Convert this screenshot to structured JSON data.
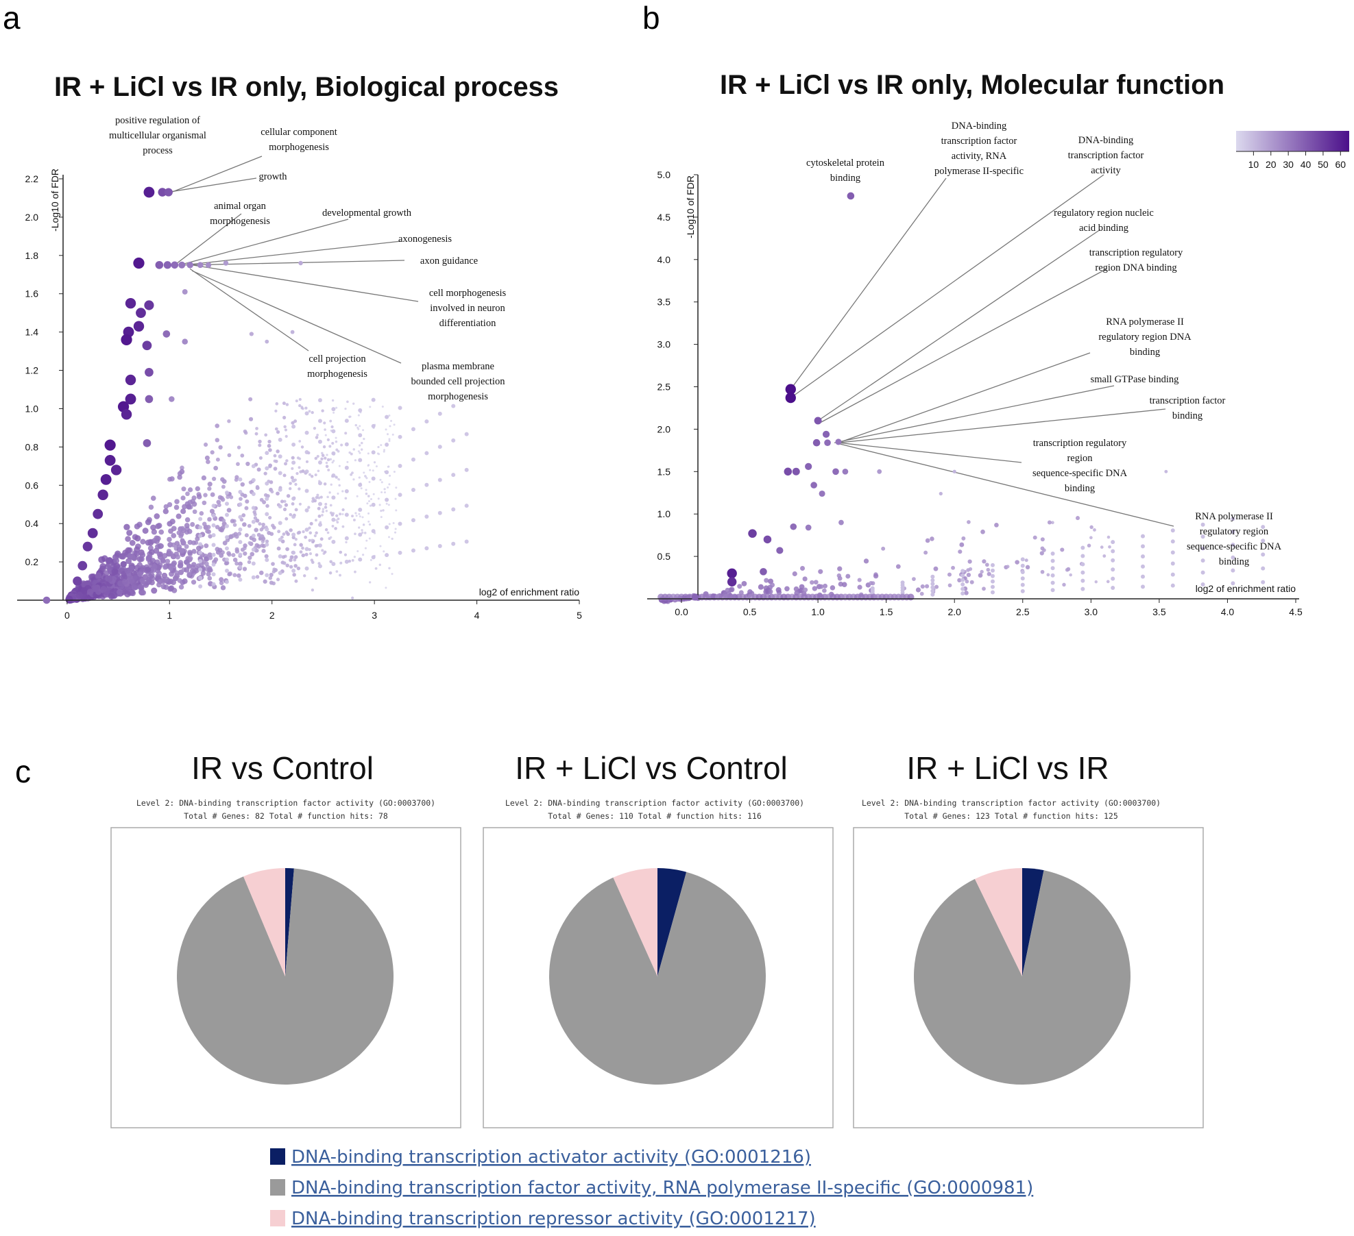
{
  "panel_labels": {
    "a": "a",
    "b": "b",
    "c": "c"
  },
  "colors": {
    "scale_low": "#dcd9ee",
    "scale_high": "#4b0f8a",
    "leader": "#777777",
    "activator": "#0b1f64",
    "rna_pol": "#9a9a9a",
    "repressor": "#f6cfd2",
    "link": "#3a5f9c"
  },
  "chart_data": [
    {
      "id": "a",
      "type": "scatter",
      "title": "IR + LiCl vs IR only, Biological process",
      "xlabel": "log2 of enrichment ratio",
      "ylabel": "-Log10 of FDR",
      "xlim": [
        -0.3,
        5
      ],
      "ylim": [
        -0.02,
        2.3
      ],
      "xticks": [
        "0",
        "1",
        "2",
        "3",
        "4",
        "5"
      ],
      "xtick_values": [
        0,
        1,
        2,
        3,
        4,
        5
      ],
      "yticks": [
        "0.2",
        "0.4",
        "0.6",
        "0.8",
        "1.0",
        "1.2",
        "1.4",
        "1.6",
        "1.8",
        "2.0",
        "2.2"
      ],
      "ytick_values": [
        0.2,
        0.4,
        0.6,
        0.8,
        1.0,
        1.2,
        1.4,
        1.6,
        1.8,
        2.0,
        2.2
      ],
      "annotations": [
        {
          "lines": [
            "positive regulation of",
            "multicellular organismal",
            "process"
          ],
          "point": [
            0.8,
            2.13
          ]
        },
        {
          "lines": [
            "cellular component",
            "morphogenesis"
          ],
          "point": [
            1.02,
            2.13
          ]
        },
        {
          "lines": [
            "growth"
          ],
          "point": [
            0.98,
            2.13
          ]
        },
        {
          "lines": [
            "animal organ",
            "morphogenesis"
          ],
          "point": [
            1.05,
            1.75
          ]
        },
        {
          "lines": [
            "developmental growth"
          ],
          "point": [
            1.1,
            1.75
          ]
        },
        {
          "lines": [
            "axonogenesis"
          ],
          "point": [
            1.15,
            1.75
          ]
        },
        {
          "lines": [
            "axon guidance"
          ],
          "point": [
            1.2,
            1.75
          ]
        },
        {
          "lines": [
            "cell morphogenesis",
            "involved in neuron",
            "differentiation"
          ],
          "point": [
            1.22,
            1.75
          ]
        },
        {
          "lines": [
            "cell projection",
            "morphogenesis"
          ],
          "point": [
            1.2,
            1.73
          ]
        },
        {
          "lines": [
            "plasma membrane",
            "bounded cell projection",
            "morphogenesis"
          ],
          "point": [
            1.22,
            1.72
          ]
        }
      ],
      "points": [
        {
          "x": 0.8,
          "y": 2.13,
          "v": 60
        },
        {
          "x": 0.93,
          "y": 2.13,
          "v": 45
        },
        {
          "x": 0.99,
          "y": 2.13,
          "v": 42
        },
        {
          "x": 0.7,
          "y": 1.76,
          "v": 62
        },
        {
          "x": 0.9,
          "y": 1.75,
          "v": 40
        },
        {
          "x": 0.98,
          "y": 1.75,
          "v": 38
        },
        {
          "x": 1.05,
          "y": 1.75,
          "v": 35
        },
        {
          "x": 1.12,
          "y": 1.75,
          "v": 32
        },
        {
          "x": 1.2,
          "y": 1.75,
          "v": 30
        },
        {
          "x": 1.3,
          "y": 1.75,
          "v": 26
        },
        {
          "x": 1.38,
          "y": 1.75,
          "v": 24
        },
        {
          "x": 1.55,
          "y": 1.76,
          "v": 20
        },
        {
          "x": 2.28,
          "y": 1.76,
          "v": 15
        },
        {
          "x": 1.15,
          "y": 1.61,
          "v": 22
        },
        {
          "x": 0.62,
          "y": 1.55,
          "v": 58
        },
        {
          "x": 0.8,
          "y": 1.54,
          "v": 52
        },
        {
          "x": 0.72,
          "y": 1.5,
          "v": 55
        },
        {
          "x": 0.6,
          "y": 1.4,
          "v": 60
        },
        {
          "x": 0.7,
          "y": 1.43,
          "v": 58
        },
        {
          "x": 0.58,
          "y": 1.36,
          "v": 62
        },
        {
          "x": 0.78,
          "y": 1.33,
          "v": 50
        },
        {
          "x": 0.97,
          "y": 1.39,
          "v": 35
        },
        {
          "x": 1.15,
          "y": 1.35,
          "v": 25
        },
        {
          "x": 1.8,
          "y": 1.39,
          "v": 14
        },
        {
          "x": 1.95,
          "y": 1.35,
          "v": 12
        },
        {
          "x": 2.2,
          "y": 1.4,
          "v": 12
        },
        {
          "x": 0.62,
          "y": 1.15,
          "v": 58
        },
        {
          "x": 0.8,
          "y": 1.19,
          "v": 45
        },
        {
          "x": 0.55,
          "y": 1.01,
          "v": 62
        },
        {
          "x": 0.62,
          "y": 1.05,
          "v": 60
        },
        {
          "x": 0.58,
          "y": 0.97,
          "v": 58
        },
        {
          "x": 0.8,
          "y": 1.05,
          "v": 40
        },
        {
          "x": 1.02,
          "y": 1.05,
          "v": 25
        },
        {
          "x": 0.42,
          "y": 0.81,
          "v": 62
        },
        {
          "x": 0.42,
          "y": 0.73,
          "v": 60
        },
        {
          "x": 0.48,
          "y": 0.68,
          "v": 58
        },
        {
          "x": 0.78,
          "y": 0.82,
          "v": 40
        },
        {
          "x": 0.38,
          "y": 0.63,
          "v": 60
        },
        {
          "x": 0.35,
          "y": 0.55,
          "v": 58
        },
        {
          "x": 0.3,
          "y": 0.45,
          "v": 55
        },
        {
          "x": 0.25,
          "y": 0.35,
          "v": 55
        },
        {
          "x": 0.2,
          "y": 0.28,
          "v": 52
        },
        {
          "x": 0.15,
          "y": 0.18,
          "v": 50
        },
        {
          "x": 0.1,
          "y": 0.1,
          "v": 48
        },
        {
          "x": -0.2,
          "y": 0.0,
          "v": 35
        }
      ]
    },
    {
      "id": "b",
      "type": "scatter",
      "title": "IR + LiCl vs IR only,  Molecular function",
      "xlabel": "log2 of enrichment ratio",
      "ylabel": "-Log10 of FDR",
      "xlim": [
        -0.25,
        4.5
      ],
      "ylim": [
        -0.02,
        5.05
      ],
      "xticks": [
        "0.0",
        "0.5",
        "1.0",
        "1.5",
        "2.0",
        "2.5",
        "3.0",
        "3.5",
        "4.0",
        "4.5"
      ],
      "xtick_values": [
        0,
        0.5,
        1.0,
        1.5,
        2.0,
        2.5,
        3.0,
        3.5,
        4.0,
        4.5
      ],
      "yticks": [
        "0.5",
        "1.0",
        "1.5",
        "2.0",
        "2.5",
        "3.0",
        "3.5",
        "4.0",
        "4.5",
        "5.0"
      ],
      "ytick_values": [
        0.5,
        1.0,
        1.5,
        2.0,
        2.5,
        3.0,
        3.5,
        4.0,
        4.5,
        5.0
      ],
      "colorbar": {
        "ticks": [
          "10",
          "20",
          "30",
          "40",
          "50",
          "60"
        ],
        "tick_values": [
          10,
          20,
          30,
          40,
          50,
          60
        ],
        "range": [
          0,
          65
        ]
      },
      "annotations": [
        {
          "lines": [
            "cytoskeletal protein",
            "binding"
          ],
          "point": [
            1.24,
            4.75
          ]
        },
        {
          "lines": [
            "DNA-binding",
            "transcription factor",
            "activity, RNA",
            "polymerase II-specific"
          ],
          "point": [
            0.8,
            2.47
          ]
        },
        {
          "lines": [
            "DNA-binding",
            "transcription factor",
            "activity"
          ],
          "point": [
            0.8,
            2.37
          ]
        },
        {
          "lines": [
            "regulatory region nucleic",
            "acid binding"
          ],
          "point": [
            1.0,
            2.1
          ]
        },
        {
          "lines": [
            "transcription regulatory",
            "region DNA binding"
          ],
          "point": [
            1.02,
            2.08
          ]
        },
        {
          "lines": [
            "RNA polymerase II",
            "regulatory region DNA",
            "binding"
          ],
          "point": [
            1.15,
            1.84
          ]
        },
        {
          "lines": [
            "small GTPase binding"
          ],
          "point": [
            1.12,
            1.84
          ]
        },
        {
          "lines": [
            "transcription factor",
            "binding"
          ],
          "point": [
            1.15,
            1.84
          ]
        },
        {
          "lines": [
            "transcription regulatory",
            "region",
            "sequence-specific DNA",
            "binding"
          ],
          "point": [
            1.15,
            1.84
          ]
        },
        {
          "lines": [
            "RNA polymerase II",
            "regulatory region",
            "sequence-specific DNA",
            "binding"
          ],
          "point": [
            1.15,
            1.83
          ]
        }
      ],
      "points": [
        {
          "x": 1.24,
          "y": 4.75,
          "v": 40
        },
        {
          "x": 0.8,
          "y": 2.47,
          "v": 65
        },
        {
          "x": 0.8,
          "y": 2.37,
          "v": 65
        },
        {
          "x": 1.0,
          "y": 2.1,
          "v": 42
        },
        {
          "x": 1.06,
          "y": 1.94,
          "v": 38
        },
        {
          "x": 0.99,
          "y": 1.84,
          "v": 40
        },
        {
          "x": 1.07,
          "y": 1.84,
          "v": 35
        },
        {
          "x": 1.15,
          "y": 1.85,
          "v": 32
        },
        {
          "x": 0.78,
          "y": 1.5,
          "v": 45
        },
        {
          "x": 0.84,
          "y": 1.5,
          "v": 42
        },
        {
          "x": 0.93,
          "y": 1.56,
          "v": 38
        },
        {
          "x": 1.13,
          "y": 1.5,
          "v": 35
        },
        {
          "x": 1.2,
          "y": 1.5,
          "v": 30
        },
        {
          "x": 1.45,
          "y": 1.5,
          "v": 20
        },
        {
          "x": 2.0,
          "y": 1.5,
          "v": 12
        },
        {
          "x": 3.55,
          "y": 1.5,
          "v": 10
        },
        {
          "x": 0.97,
          "y": 1.34,
          "v": 35
        },
        {
          "x": 1.03,
          "y": 1.24,
          "v": 32
        },
        {
          "x": 1.9,
          "y": 1.24,
          "v": 12
        },
        {
          "x": 0.52,
          "y": 0.77,
          "v": 50
        },
        {
          "x": 0.63,
          "y": 0.7,
          "v": 45
        },
        {
          "x": 0.82,
          "y": 0.85,
          "v": 35
        },
        {
          "x": 0.93,
          "y": 0.84,
          "v": 30
        },
        {
          "x": 1.17,
          "y": 0.9,
          "v": 25
        },
        {
          "x": 0.72,
          "y": 0.57,
          "v": 38
        },
        {
          "x": 0.6,
          "y": 0.32,
          "v": 40
        },
        {
          "x": 0.37,
          "y": 0.3,
          "v": 60
        },
        {
          "x": 0.37,
          "y": 0.2,
          "v": 55
        },
        {
          "x": 0.1,
          "y": 0.02,
          "v": 38
        }
      ]
    },
    {
      "id": "c1",
      "type": "pie",
      "title": "IR vs Control",
      "subtitle": "Level 2: DNA-binding transcription factor activity (GO:0003700)",
      "totals": "Total # Genes: 82    Total # function hits: 78",
      "slices": [
        {
          "label": "DNA-binding transcription activator activity (GO:0001216)",
          "value": 1.3
        },
        {
          "label": "DNA-binding transcription factor activity, RNA polymerase II-specific (GO:0000981)",
          "value": 92.4
        },
        {
          "label": "DNA-binding transcription repressor activity (GO:0001217)",
          "value": 6.3
        }
      ]
    },
    {
      "id": "c2",
      "type": "pie",
      "title": "IR + LiCl vs Control",
      "subtitle": "Level 2: DNA-binding transcription factor activity (GO:0003700)",
      "totals": "Total # Genes: 110    Total # function hits: 116",
      "slices": [
        {
          "label": "DNA-binding transcription activator activity (GO:0001216)",
          "value": 4.3
        },
        {
          "label": "DNA-binding transcription factor activity, RNA polymerase II-specific (GO:0000981)",
          "value": 89.0
        },
        {
          "label": "DNA-binding transcription repressor activity (GO:0001217)",
          "value": 6.7
        }
      ]
    },
    {
      "id": "c3",
      "type": "pie",
      "title": "IR + LiCl vs IR",
      "subtitle": "Level 2: DNA-binding transcription factor activity (GO:0003700)",
      "totals": "Total # Genes: 123    Total # function hits: 125",
      "slices": [
        {
          "label": "DNA-binding transcription activator activity (GO:0001216)",
          "value": 3.2
        },
        {
          "label": "DNA-binding transcription factor activity, RNA polymerase II-specific (GO:0000981)",
          "value": 89.6
        },
        {
          "label": "DNA-binding transcription repressor activity (GO:0001217)",
          "value": 7.2
        }
      ]
    }
  ],
  "legend": [
    {
      "label": "DNA-binding transcription activator activity (GO:0001216)",
      "color": "#0b1f64"
    },
    {
      "label": "DNA-binding transcription factor activity, RNA polymerase II-specific (GO:0000981)",
      "color": "#9a9a9a"
    },
    {
      "label": "DNA-binding transcription repressor activity (GO:0001217)",
      "color": "#f6cfd2"
    }
  ]
}
